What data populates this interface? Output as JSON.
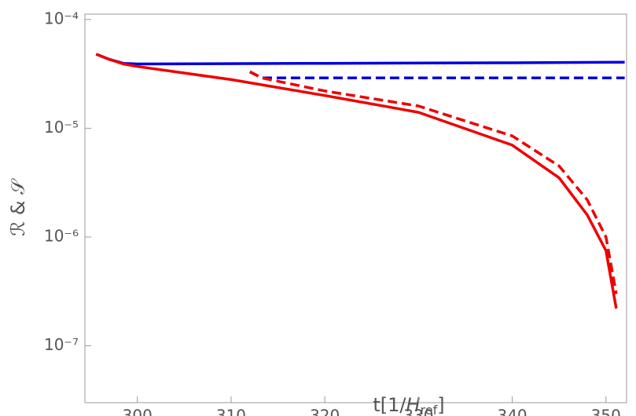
{
  "chart_data": {
    "type": "line",
    "log_y": true,
    "x_label": [
      "t[1/",
      "H",
      "ref",
      "]"
    ],
    "y_label": "ℛ & 𝒮",
    "xlim": [
      294.4,
      352.2
    ],
    "xticks": [
      300,
      310,
      320,
      330,
      340,
      350
    ],
    "ylim": [
      3e-08,
      0.000112
    ],
    "yticks": [
      {
        "value": 1e-07,
        "label": "10⁻⁷"
      },
      {
        "value": 1e-06,
        "label": "10⁻⁶"
      },
      {
        "value": 1e-05,
        "label": "10⁻⁵"
      },
      {
        "value": 0.0001,
        "label": "10⁻⁴"
      }
    ],
    "series": [
      {
        "color": "#0000e0",
        "dashed": false,
        "x": [
          295.6,
          297,
          298.5,
          300,
          320,
          340,
          352
        ],
        "values": [
          4.8e-05,
          4.3e-05,
          3.95e-05,
          3.9e-05,
          3.95e-05,
          4e-05,
          4.05e-05
        ]
      },
      {
        "color": "#0000e0",
        "dashed": true,
        "x": [
          312,
          313.3,
          320,
          352
        ],
        "values": [
          3.3e-05,
          2.9e-05,
          2.9e-05,
          2.9e-05
        ]
      },
      {
        "color": "#ee0000",
        "dashed": false,
        "x": [
          295.6,
          297,
          298.5,
          300,
          310,
          320,
          330,
          340,
          345,
          348,
          350,
          351.1
        ],
        "values": [
          4.8e-05,
          4.3e-05,
          3.9e-05,
          3.7e-05,
          2.8e-05,
          2e-05,
          1.4e-05,
          7e-06,
          3.5e-06,
          1.6e-06,
          7.5e-07,
          2.2e-07
        ]
      },
      {
        "color": "#ee0000",
        "dashed": true,
        "x": [
          312,
          313.3,
          320,
          330,
          340,
          345,
          348,
          350,
          351.1
        ],
        "values": [
          3.3e-05,
          2.9e-05,
          2.2e-05,
          1.6e-05,
          8.5e-06,
          4.5e-06,
          2.2e-06,
          1e-06,
          3e-07
        ]
      }
    ]
  }
}
